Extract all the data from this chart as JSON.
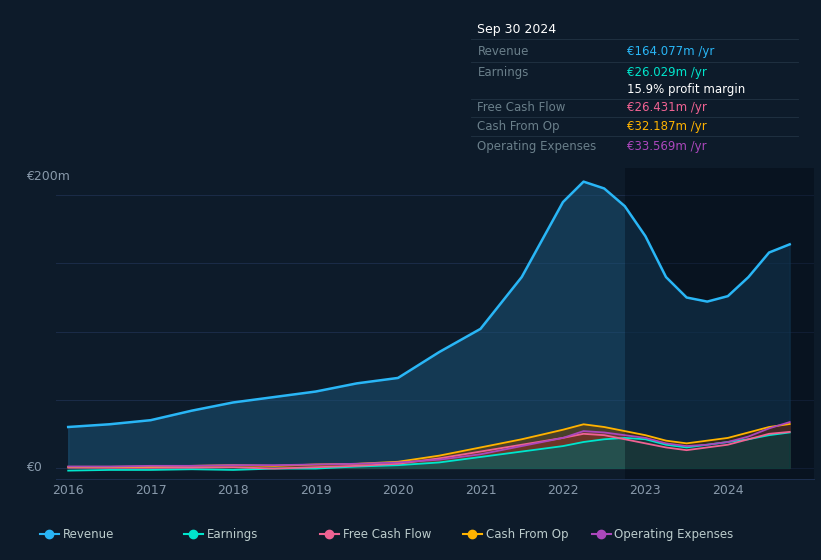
{
  "bg_color": "#0d1b2a",
  "plot_bg_color": "#0d1b2a",
  "years": [
    2016.0,
    2016.5,
    2017.0,
    2017.5,
    2018.0,
    2018.5,
    2019.0,
    2019.5,
    2020.0,
    2020.5,
    2021.0,
    2021.5,
    2022.0,
    2022.25,
    2022.5,
    2022.75,
    2023.0,
    2023.25,
    2023.5,
    2023.75,
    2024.0,
    2024.25,
    2024.5,
    2024.75
  ],
  "revenue": [
    30,
    32,
    35,
    42,
    48,
    52,
    56,
    62,
    66,
    85,
    102,
    140,
    195,
    210,
    205,
    192,
    170,
    140,
    125,
    122,
    126,
    140,
    158,
    164
  ],
  "earnings": [
    -2,
    -1.5,
    -1.5,
    -1.0,
    -1.5,
    -0.5,
    -0.5,
    1,
    2,
    4,
    8,
    12,
    16,
    19,
    21,
    22,
    21,
    17,
    15,
    17,
    19,
    21,
    24,
    26
  ],
  "free_cash_flow": [
    0.2,
    0.1,
    0.1,
    0.2,
    0.5,
    -0.5,
    0.5,
    1.5,
    3,
    7,
    12,
    17,
    22,
    25,
    24,
    21,
    18,
    15,
    13,
    15,
    17,
    21,
    25,
    26.4
  ],
  "cash_from_op": [
    0.8,
    0.8,
    1.0,
    1.5,
    2,
    1.5,
    2.5,
    3,
    4.5,
    9,
    15,
    21,
    28,
    32,
    30,
    27,
    24,
    20,
    18,
    20,
    22,
    26,
    30,
    32.2
  ],
  "operating_expenses": [
    1,
    1,
    1.5,
    1.5,
    2,
    2,
    2.5,
    3,
    4,
    6,
    10,
    16,
    22,
    27,
    26,
    24,
    22,
    18,
    16,
    17,
    19,
    23,
    29,
    33.6
  ],
  "revenue_color": "#29b6f6",
  "earnings_color": "#00e5cc",
  "fcf_color": "#f06292",
  "cashop_color": "#ffb300",
  "opex_color": "#ab47bc",
  "revenue_fill": "#1a5276",
  "earnings_fill": "#006064",
  "fcf_fill": "#6d1a3e",
  "cashop_fill": "#7d4800",
  "opex_fill": "#5b2c6f",
  "xticks": [
    2016,
    2017,
    2018,
    2019,
    2020,
    2021,
    2022,
    2023,
    2024
  ],
  "info_box": {
    "title": "Sep 30 2024",
    "revenue_label": "Revenue",
    "revenue_value": "€164.077m /yr",
    "earnings_label": "Earnings",
    "earnings_value": "€26.029m /yr",
    "margin_text": "15.9% profit margin",
    "fcf_label": "Free Cash Flow",
    "fcf_value": "€26.431m /yr",
    "cashop_label": "Cash From Op",
    "cashop_value": "€32.187m /yr",
    "opex_label": "Operating Expenses",
    "opex_value": "€33.569m /yr"
  },
  "legend_items": [
    {
      "label": "Revenue",
      "color": "#29b6f6"
    },
    {
      "label": "Earnings",
      "color": "#00e5cc"
    },
    {
      "label": "Free Cash Flow",
      "color": "#f06292"
    },
    {
      "label": "Cash From Op",
      "color": "#ffb300"
    },
    {
      "label": "Operating Expenses",
      "color": "#ab47bc"
    }
  ]
}
